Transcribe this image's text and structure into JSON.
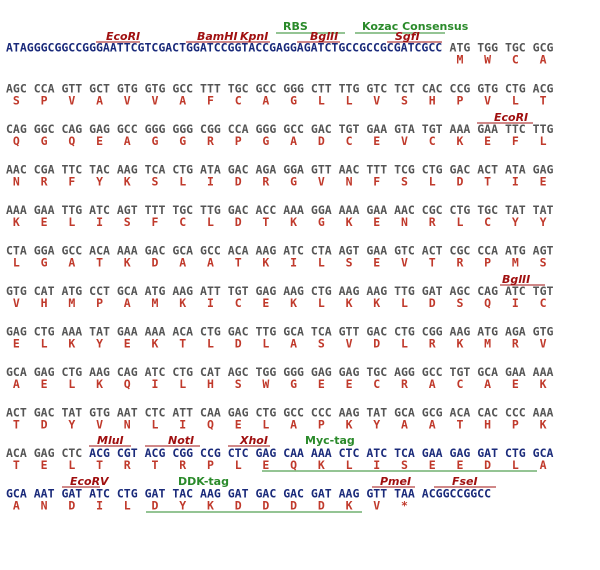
{
  "colors": {
    "sequence": "#1a2a7a",
    "codon": "#555555",
    "amino_acid": "#c0392b",
    "site": "#a01010",
    "tag": "#2a8a2a"
  },
  "header": {
    "sequence": "ATAGGGCGGCCGGGAATTCGTCGACTGGATCCGGTACCGAGGAGATCTGCCGCCGCGATCGCC",
    "codons": [
      "ATG",
      "TGG",
      "TGC",
      "GCG"
    ],
    "amino_acids": [
      "M",
      "W",
      "C",
      "A"
    ],
    "labels": [
      "RBS",
      "Kozac Consensus",
      "EcoRI",
      "BamHI",
      "KpnI",
      "BglII",
      "SgfI"
    ]
  },
  "rows": [
    {
      "codons": [
        "AGC",
        "CCA",
        "GTT",
        "GCT",
        "GTG",
        "GTG",
        "GCC",
        "TTT",
        "TGC",
        "GCC",
        "GGG",
        "CTT",
        "TTG",
        "GTC",
        "TCT",
        "CAC",
        "CCG",
        "GTG",
        "CTG",
        "ACG"
      ],
      "amino_acids": [
        "S",
        "P",
        "V",
        "A",
        "V",
        "V",
        "A",
        "F",
        "C",
        "A",
        "G",
        "L",
        "L",
        "V",
        "S",
        "H",
        "P",
        "V",
        "L",
        "T"
      ]
    },
    {
      "codons": [
        "CAG",
        "GGC",
        "CAG",
        "GAG",
        "GCC",
        "GGG",
        "GGG",
        "CGG",
        "CCA",
        "GGG",
        "GCC",
        "GAC",
        "TGT",
        "GAA",
        "GTA",
        "TGT",
        "AAA",
        "GAA",
        "TTC",
        "TTG"
      ],
      "amino_acids": [
        "Q",
        "G",
        "Q",
        "E",
        "A",
        "G",
        "G",
        "R",
        "P",
        "G",
        "A",
        "D",
        "C",
        "E",
        "V",
        "C",
        "K",
        "E",
        "F",
        "L"
      ],
      "labels": [
        "EcoRI"
      ]
    },
    {
      "codons": [
        "AAC",
        "CGA",
        "TTC",
        "TAC",
        "AAG",
        "TCA",
        "CTG",
        "ATA",
        "GAC",
        "AGA",
        "GGA",
        "GTT",
        "AAC",
        "TTT",
        "TCG",
        "CTG",
        "GAC",
        "ACT",
        "ATA",
        "GAG"
      ],
      "amino_acids": [
        "N",
        "R",
        "F",
        "Y",
        "K",
        "S",
        "L",
        "I",
        "D",
        "R",
        "G",
        "V",
        "N",
        "F",
        "S",
        "L",
        "D",
        "T",
        "I",
        "E"
      ]
    },
    {
      "codons": [
        "AAA",
        "GAA",
        "TTG",
        "ATC",
        "AGT",
        "TTT",
        "TGC",
        "TTG",
        "GAC",
        "ACC",
        "AAA",
        "GGA",
        "AAA",
        "GAA",
        "AAC",
        "CGC",
        "CTG",
        "TGC",
        "TAT",
        "TAT"
      ],
      "amino_acids": [
        "K",
        "E",
        "L",
        "I",
        "S",
        "F",
        "C",
        "L",
        "D",
        "T",
        "K",
        "G",
        "K",
        "E",
        "N",
        "R",
        "L",
        "C",
        "Y",
        "Y"
      ]
    },
    {
      "codons": [
        "CTA",
        "GGA",
        "GCC",
        "ACA",
        "AAA",
        "GAC",
        "GCA",
        "GCC",
        "ACA",
        "AAG",
        "ATC",
        "CTA",
        "AGT",
        "GAA",
        "GTC",
        "ACT",
        "CGC",
        "CCA",
        "ATG",
        "AGT"
      ],
      "amino_acids": [
        "L",
        "G",
        "A",
        "T",
        "K",
        "D",
        "A",
        "A",
        "T",
        "K",
        "I",
        "L",
        "S",
        "E",
        "V",
        "T",
        "R",
        "P",
        "M",
        "S"
      ]
    },
    {
      "codons": [
        "GTG",
        "CAT",
        "ATG",
        "CCT",
        "GCA",
        "ATG",
        "AAG",
        "ATT",
        "TGT",
        "GAG",
        "AAG",
        "CTG",
        "AAG",
        "AAG",
        "TTG",
        "GAT",
        "AGC",
        "CAG",
        "ATC",
        "TGT"
      ],
      "amino_acids": [
        "V",
        "H",
        "M",
        "P",
        "A",
        "M",
        "K",
        "I",
        "C",
        "E",
        "K",
        "L",
        "K",
        "K",
        "L",
        "D",
        "S",
        "Q",
        "I",
        "C"
      ],
      "labels": [
        "BglII"
      ]
    },
    {
      "codons": [
        "GAG",
        "CTG",
        "AAA",
        "TAT",
        "GAA",
        "AAA",
        "ACA",
        "CTG",
        "GAC",
        "TTG",
        "GCA",
        "TCA",
        "GTT",
        "GAC",
        "CTG",
        "CGG",
        "AAG",
        "ATG",
        "AGA",
        "GTG"
      ],
      "amino_acids": [
        "E",
        "L",
        "K",
        "Y",
        "E",
        "K",
        "T",
        "L",
        "D",
        "L",
        "A",
        "S",
        "V",
        "D",
        "L",
        "R",
        "K",
        "M",
        "R",
        "V"
      ]
    },
    {
      "codons": [
        "GCA",
        "GAG",
        "CTG",
        "AAG",
        "CAG",
        "ATC",
        "CTG",
        "CAT",
        "AGC",
        "TGG",
        "GGG",
        "GAG",
        "GAG",
        "TGC",
        "AGG",
        "GCC",
        "TGT",
        "GCA",
        "GAA",
        "AAA"
      ],
      "amino_acids": [
        "A",
        "E",
        "L",
        "K",
        "Q",
        "I",
        "L",
        "H",
        "S",
        "W",
        "G",
        "E",
        "E",
        "C",
        "R",
        "A",
        "C",
        "A",
        "E",
        "K"
      ]
    },
    {
      "codons": [
        "ACT",
        "GAC",
        "TAT",
        "GTG",
        "AAT",
        "CTC",
        "ATT",
        "CAA",
        "GAG",
        "CTG",
        "GCC",
        "CCC",
        "AAG",
        "TAT",
        "GCA",
        "GCG",
        "ACA",
        "CAC",
        "CCC",
        "AAA"
      ],
      "amino_acids": [
        "T",
        "D",
        "Y",
        "V",
        "N",
        "L",
        "I",
        "Q",
        "E",
        "L",
        "A",
        "P",
        "K",
        "Y",
        "A",
        "A",
        "T",
        "H",
        "P",
        "K"
      ]
    },
    {
      "codons": [
        "ACA",
        "GAG",
        "CTC",
        "ACG",
        "CGT",
        "ACG",
        "CGG",
        "CCG",
        "CTC",
        "GAG",
        "CAA",
        "AAA",
        "CTC",
        "ATC",
        "TCA",
        "GAA",
        "GAG",
        "GAT",
        "CTG",
        "GCA"
      ],
      "amino_acids": [
        "T",
        "E",
        "L",
        "T",
        "R",
        "T",
        "R",
        "P",
        "L",
        "E",
        "Q",
        "K",
        "L",
        "I",
        "S",
        "E",
        "E",
        "D",
        "L",
        "A"
      ],
      "labels": [
        "MluI",
        "NotI",
        "XhoI",
        "Myc-tag"
      ],
      "codon_colors": [
        "#555555",
        "#555555",
        "#555555",
        "#1a2a7a",
        "#1a2a7a",
        "#1a2a7a",
        "#1a2a7a",
        "#1a2a7a",
        "#1a2a7a",
        "#1a2a7a",
        "#1a2a7a",
        "#1a2a7a",
        "#1a2a7a",
        "#1a2a7a",
        "#1a2a7a",
        "#1a2a7a",
        "#1a2a7a",
        "#1a2a7a",
        "#1a2a7a",
        "#1a2a7a"
      ]
    },
    {
      "codons": [
        "GCA",
        "AAT",
        "GAT",
        "ATC",
        "CTG",
        "GAT",
        "TAC",
        "AAG",
        "GAT",
        "GAC",
        "GAC",
        "GAT",
        "AAG",
        "GTT",
        "TAA"
      ],
      "amino_acids": [
        "A",
        "N",
        "D",
        "I",
        "L",
        "D",
        "Y",
        "K",
        "D",
        "D",
        "D",
        "D",
        "K",
        "V",
        "*"
      ],
      "tail": "ACGGCCGGCC",
      "labels": [
        "EcoRV",
        "DDK-tag",
        "PmeI",
        "FseI"
      ],
      "color": "#1a2a7a"
    }
  ]
}
